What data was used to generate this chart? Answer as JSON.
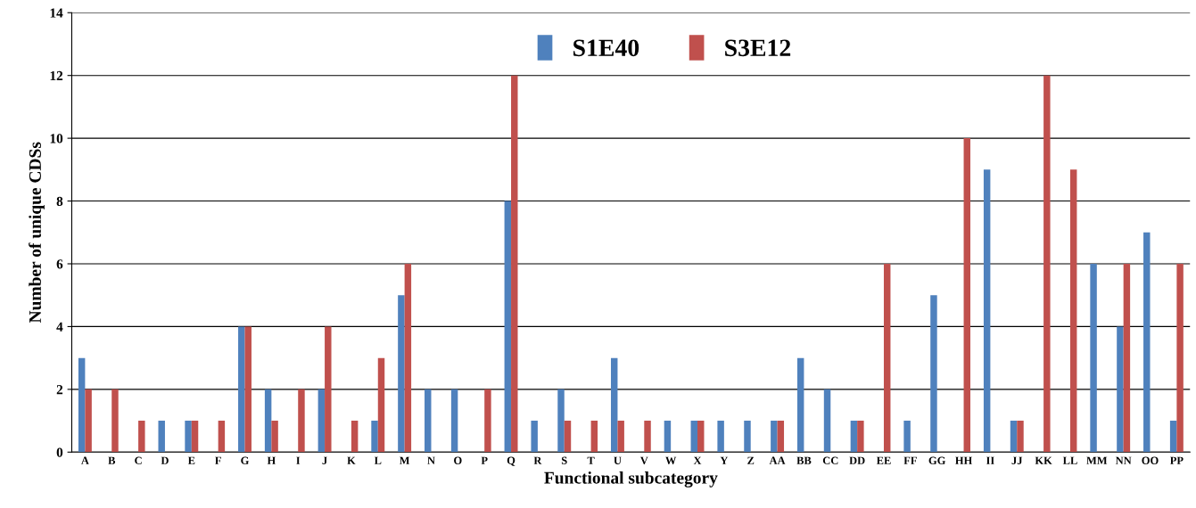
{
  "chart_data": {
    "type": "bar",
    "xlabel": "Functional subcategory",
    "ylabel": "Number of unique CDSs",
    "categories": [
      "A",
      "B",
      "C",
      "D",
      "E",
      "F",
      "G",
      "H",
      "I",
      "J",
      "K",
      "L",
      "M",
      "N",
      "O",
      "P",
      "Q",
      "R",
      "S",
      "T",
      "U",
      "V",
      "W",
      "X",
      "Y",
      "Z",
      "AA",
      "BB",
      "CC",
      "DD",
      "EE",
      "FF",
      "GG",
      "HH",
      "II",
      "JJ",
      "KK",
      "LL",
      "MM",
      "NN",
      "OO",
      "PP"
    ],
    "series": [
      {
        "name": "S1E40",
        "color": "#4f81bd",
        "values": [
          3,
          0,
          0,
          1,
          1,
          0,
          4,
          2,
          0,
          2,
          0,
          1,
          5,
          2,
          2,
          0,
          8,
          1,
          2,
          0,
          3,
          0,
          1,
          1,
          1,
          1,
          1,
          3,
          2,
          1,
          0,
          1,
          5,
          0,
          9,
          1,
          0,
          0,
          6,
          4,
          7,
          1
        ]
      },
      {
        "name": "S3E12",
        "color": "#c0504d",
        "values": [
          2,
          2,
          1,
          0,
          1,
          1,
          4,
          1,
          2,
          4,
          1,
          3,
          6,
          0,
          0,
          2,
          12,
          0,
          1,
          1,
          1,
          1,
          0,
          1,
          0,
          0,
          1,
          0,
          0,
          1,
          6,
          0,
          0,
          10,
          0,
          1,
          12,
          9,
          0,
          6,
          0,
          6
        ]
      }
    ],
    "ylim": [
      0,
      14
    ],
    "yticks": [
      0,
      2,
      4,
      6,
      8,
      10,
      12,
      14
    ],
    "grid": "y",
    "legend": "top"
  }
}
